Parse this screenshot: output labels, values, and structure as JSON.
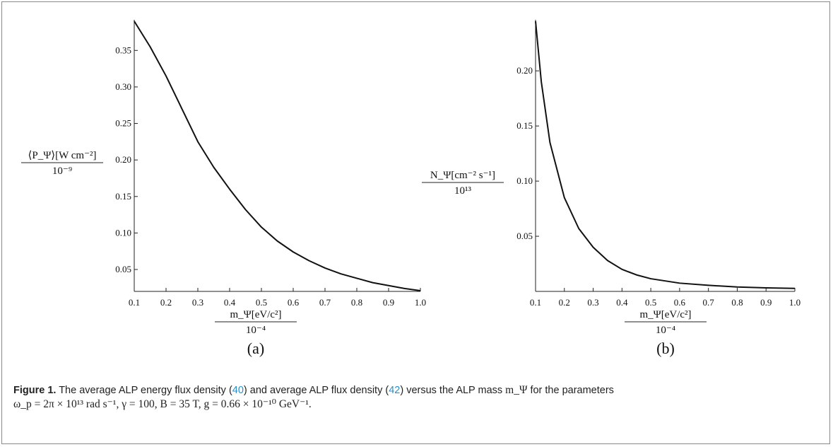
{
  "chart_data": [
    {
      "type": "line",
      "panel_label": "(a)",
      "ylabel_top": "⟨P_Ψ⟩[W cm⁻²]",
      "ylabel_bottom": "10⁻⁹",
      "xlabel_top": "m_Ψ[eV/c²]",
      "xlabel_bottom": "10⁻⁴",
      "xlim": [
        0.1,
        1.0
      ],
      "ylim": [
        0.02,
        0.39
      ],
      "x_ticks": [
        "0.1",
        "0.2",
        "0.3",
        "0.4",
        "0.5",
        "0.6",
        "0.7",
        "0.8",
        "0.9",
        "1.0"
      ],
      "y_ticks": [
        "0.05",
        "0.10",
        "0.15",
        "0.20",
        "0.25",
        "0.30",
        "0.35"
      ],
      "series": [
        {
          "x": [
            0.1,
            0.15,
            0.2,
            0.25,
            0.3,
            0.35,
            0.4,
            0.45,
            0.5,
            0.55,
            0.6,
            0.65,
            0.7,
            0.75,
            0.8,
            0.85,
            0.9,
            0.95,
            1.0
          ],
          "values": [
            0.39,
            0.355,
            0.315,
            0.27,
            0.225,
            0.19,
            0.16,
            0.132,
            0.108,
            0.089,
            0.074,
            0.062,
            0.052,
            0.044,
            0.038,
            0.032,
            0.028,
            0.024,
            0.021
          ]
        }
      ]
    },
    {
      "type": "line",
      "panel_label": "(b)",
      "ylabel_top": "N_Ψ[cm⁻² s⁻¹]",
      "ylabel_bottom": "10¹³",
      "xlabel_top": "m_Ψ[eV/c²]",
      "xlabel_bottom": "10⁻⁴",
      "xlim": [
        0.1,
        1.0
      ],
      "ylim": [
        0.0,
        0.245
      ],
      "x_ticks": [
        "0.1",
        "0.2",
        "0.3",
        "0.4",
        "0.5",
        "0.6",
        "0.7",
        "0.8",
        "0.9",
        "1.0"
      ],
      "y_ticks": [
        "0.05",
        "0.10",
        "0.15",
        "0.20"
      ],
      "series": [
        {
          "x": [
            0.1,
            0.12,
            0.15,
            0.2,
            0.25,
            0.3,
            0.35,
            0.4,
            0.45,
            0.5,
            0.6,
            0.7,
            0.8,
            0.9,
            1.0
          ],
          "values": [
            0.245,
            0.19,
            0.135,
            0.085,
            0.057,
            0.04,
            0.028,
            0.02,
            0.015,
            0.0115,
            0.0075,
            0.0055,
            0.004,
            0.0032,
            0.0027
          ]
        }
      ]
    }
  ],
  "caption": {
    "label": "Figure 1.",
    "text1": " The average ALP energy flux density (",
    "ref1": "40",
    "text2": ") and average ALP flux density (",
    "ref2": "42",
    "text3": ") versus the ALP mass ",
    "mass_symbol": "m_Ψ",
    "text4": " for the parameters",
    "params": "ω_p = 2π × 10¹³ rad s⁻¹, γ = 100, B = 35 T, g = 0.66 × 10⁻¹⁰ GeV⁻¹."
  }
}
